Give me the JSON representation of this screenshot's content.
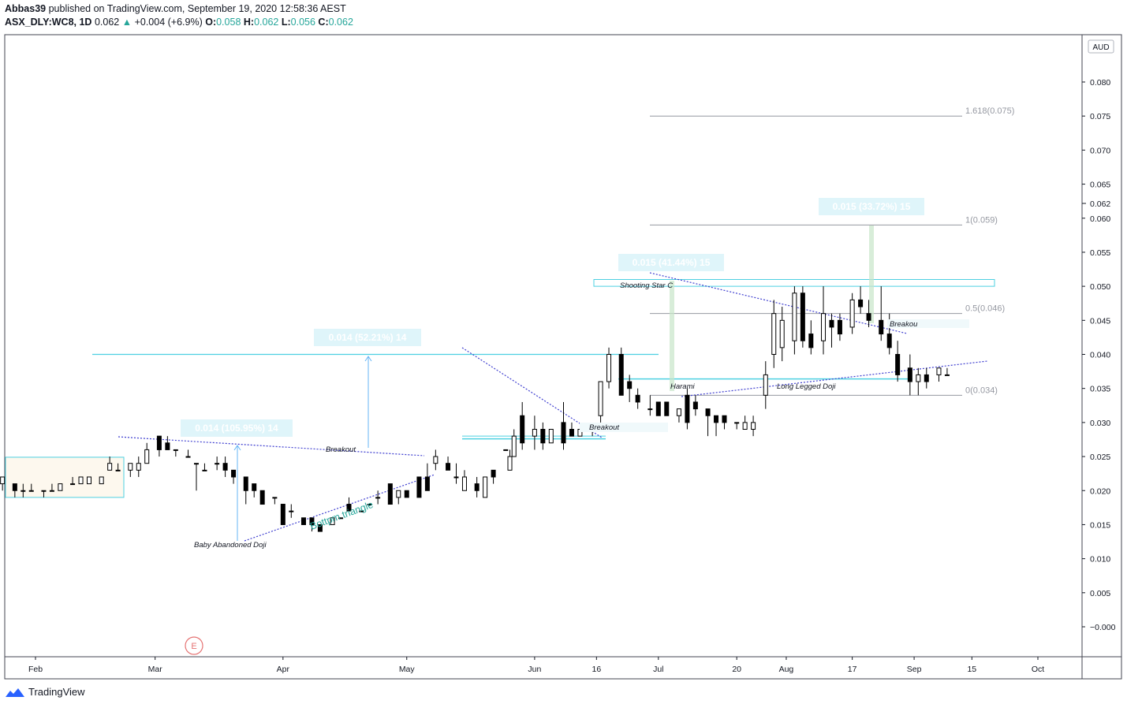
{
  "header": {
    "author": "Abbas39",
    "published_text": "published on TradingView.com, September 19, 2020 12:58:36 AEST",
    "symbol": "ASX_DLY:WC8, 1D",
    "last": "0.062",
    "change": "+0.004 (+6.9%)",
    "o_label": "O:",
    "o_val": "0.058",
    "h_label": "H:",
    "h_val": "0.062",
    "l_label": "L:",
    "l_val": "0.056",
    "c_label": "C:",
    "c_val": "0.062"
  },
  "currency": "AUD",
  "price_badge": "0.062",
  "earnings_marker": "E",
  "brand": "TradingView",
  "annotations": {
    "measure1": "0.014 (105.95%) 14",
    "measure2": "0.014 (52.21%) 14",
    "measure3": "0.015 (41.44%) 15",
    "measure4": "0.015 (33.72%) 15",
    "baby_doji": "Baby Abandoned Doji",
    "bottom_triangle": "Bottpm triangle",
    "breakout1": "Breakout",
    "breakout2": "Breakout",
    "breakout3": "Breakou",
    "shooting_star": "Shooting Star C",
    "harami": "Harami",
    "long_legged": "Long Legged Doji",
    "fib_1618": "1.618(0.075)",
    "fib_1": "1(0.059)",
    "fib_05": "0.5(0.046)",
    "fib_0": "0(0.034)"
  },
  "colors": {
    "up_fill": "#ffffff",
    "down_fill": "#000000",
    "wick": "#000000",
    "cyan": "#4dd0e1",
    "trend": "#3f3fd0",
    "header_green": "#26a69a",
    "label_bg": "#dff5fa"
  },
  "chart_data": {
    "type": "candlestick",
    "title": "ASX_DLY:WC8, 1D",
    "currency": "AUD",
    "ylim": [
      -0.004,
      0.087
    ],
    "y_ticks": [
      "0.080",
      "0.075",
      "0.070",
      "0.065",
      "0.060",
      "0.055",
      "0.050",
      "0.045",
      "0.040",
      "0.035",
      "0.030",
      "0.025",
      "0.020",
      "0.015",
      "0.010",
      "0.005",
      "−0.000"
    ],
    "x_tick_labels": [
      "Feb",
      "Mar",
      "Apr",
      "May",
      "Jun",
      "16",
      "Jul",
      "20",
      "Aug",
      "17",
      "Sep",
      "15",
      "Oct"
    ],
    "x_ticks": [
      "2020-02-01",
      "2020-03-01",
      "2020-04-01",
      "2020-05-01",
      "2020-06-01",
      "2020-06-16",
      "2020-07-01",
      "2020-07-20",
      "2020-08-01",
      "2020-08-17",
      "2020-09-01",
      "2020-09-15",
      "2020-10-01"
    ],
    "grid": false,
    "candles": [
      {
        "d": "2020-01-22",
        "o": 0.021,
        "h": 0.022,
        "l": 0.02,
        "c": 0.021
      },
      {
        "d": "2020-01-24",
        "o": 0.021,
        "h": 0.022,
        "l": 0.02,
        "c": 0.022
      },
      {
        "d": "2020-01-27",
        "o": 0.021,
        "h": 0.021,
        "l": 0.019,
        "c": 0.02
      },
      {
        "d": "2020-01-29",
        "o": 0.02,
        "h": 0.021,
        "l": 0.019,
        "c": 0.02
      },
      {
        "d": "2020-01-31",
        "o": 0.02,
        "h": 0.021,
        "l": 0.02,
        "c": 0.02
      },
      {
        "d": "2020-02-03",
        "o": 0.02,
        "h": 0.02,
        "l": 0.019,
        "c": 0.02
      },
      {
        "d": "2020-02-05",
        "o": 0.02,
        "h": 0.021,
        "l": 0.02,
        "c": 0.02
      },
      {
        "d": "2020-02-07",
        "o": 0.02,
        "h": 0.021,
        "l": 0.02,
        "c": 0.021
      },
      {
        "d": "2020-02-10",
        "o": 0.021,
        "h": 0.022,
        "l": 0.021,
        "c": 0.021
      },
      {
        "d": "2020-02-12",
        "o": 0.021,
        "h": 0.022,
        "l": 0.021,
        "c": 0.022
      },
      {
        "d": "2020-02-14",
        "o": 0.021,
        "h": 0.022,
        "l": 0.021,
        "c": 0.022
      },
      {
        "d": "2020-02-17",
        "o": 0.021,
        "h": 0.022,
        "l": 0.021,
        "c": 0.022
      },
      {
        "d": "2020-02-19",
        "o": 0.023,
        "h": 0.025,
        "l": 0.023,
        "c": 0.024
      },
      {
        "d": "2020-02-21",
        "o": 0.023,
        "h": 0.024,
        "l": 0.023,
        "c": 0.023
      },
      {
        "d": "2020-02-24",
        "o": 0.023,
        "h": 0.024,
        "l": 0.022,
        "c": 0.024
      },
      {
        "d": "2020-02-26",
        "o": 0.023,
        "h": 0.025,
        "l": 0.022,
        "c": 0.024
      },
      {
        "d": "2020-02-28",
        "o": 0.024,
        "h": 0.027,
        "l": 0.024,
        "c": 0.026
      },
      {
        "d": "2020-03-02",
        "o": 0.028,
        "h": 0.028,
        "l": 0.025,
        "c": 0.026
      },
      {
        "d": "2020-03-04",
        "o": 0.027,
        "h": 0.028,
        "l": 0.026,
        "c": 0.026
      },
      {
        "d": "2020-03-06",
        "o": 0.026,
        "h": 0.026,
        "l": 0.025,
        "c": 0.026
      },
      {
        "d": "2020-03-09",
        "o": 0.025,
        "h": 0.026,
        "l": 0.025,
        "c": 0.025
      },
      {
        "d": "2020-03-11",
        "o": 0.024,
        "h": 0.024,
        "l": 0.02,
        "c": 0.024
      },
      {
        "d": "2020-03-13",
        "o": 0.023,
        "h": 0.024,
        "l": 0.023,
        "c": 0.023
      },
      {
        "d": "2020-03-16",
        "o": 0.024,
        "h": 0.025,
        "l": 0.023,
        "c": 0.024
      },
      {
        "d": "2020-03-18",
        "o": 0.024,
        "h": 0.025,
        "l": 0.022,
        "c": 0.023
      },
      {
        "d": "2020-03-20",
        "o": 0.023,
        "h": 0.023,
        "l": 0.021,
        "c": 0.022
      },
      {
        "d": "2020-03-23",
        "o": 0.022,
        "h": 0.022,
        "l": 0.018,
        "c": 0.02
      },
      {
        "d": "2020-03-25",
        "o": 0.021,
        "h": 0.021,
        "l": 0.019,
        "c": 0.02
      },
      {
        "d": "2020-03-27",
        "o": 0.02,
        "h": 0.02,
        "l": 0.018,
        "c": 0.018
      },
      {
        "d": "2020-03-30",
        "o": 0.019,
        "h": 0.019,
        "l": 0.018,
        "c": 0.019
      },
      {
        "d": "2020-04-01",
        "o": 0.018,
        "h": 0.018,
        "l": 0.015,
        "c": 0.015
      },
      {
        "d": "2020-04-03",
        "o": 0.017,
        "h": 0.018,
        "l": 0.016,
        "c": 0.017
      },
      {
        "d": "2020-04-06",
        "o": 0.016,
        "h": 0.016,
        "l": 0.015,
        "c": 0.015
      },
      {
        "d": "2020-04-08",
        "o": 0.016,
        "h": 0.016,
        "l": 0.014,
        "c": 0.015
      },
      {
        "d": "2020-04-10",
        "o": 0.015,
        "h": 0.015,
        "l": 0.014,
        "c": 0.014
      },
      {
        "d": "2020-04-13",
        "o": 0.015,
        "h": 0.016,
        "l": 0.015,
        "c": 0.016
      },
      {
        "d": "2020-04-15",
        "o": 0.016,
        "h": 0.016,
        "l": 0.016,
        "c": 0.016
      },
      {
        "d": "2020-04-17",
        "o": 0.018,
        "h": 0.019,
        "l": 0.017,
        "c": 0.017
      },
      {
        "d": "2020-04-20",
        "o": 0.017,
        "h": 0.017,
        "l": 0.017,
        "c": 0.017
      },
      {
        "d": "2020-04-22",
        "o": 0.018,
        "h": 0.018,
        "l": 0.018,
        "c": 0.018
      },
      {
        "d": "2020-04-24",
        "o": 0.019,
        "h": 0.02,
        "l": 0.018,
        "c": 0.019
      },
      {
        "d": "2020-04-27",
        "o": 0.021,
        "h": 0.021,
        "l": 0.018,
        "c": 0.018
      },
      {
        "d": "2020-04-29",
        "o": 0.019,
        "h": 0.02,
        "l": 0.018,
        "c": 0.02
      },
      {
        "d": "2020-05-01",
        "o": 0.02,
        "h": 0.02,
        "l": 0.019,
        "c": 0.019
      },
      {
        "d": "2020-05-04",
        "o": 0.022,
        "h": 0.022,
        "l": 0.019,
        "c": 0.019
      },
      {
        "d": "2020-05-06",
        "o": 0.022,
        "h": 0.024,
        "l": 0.02,
        "c": 0.02
      },
      {
        "d": "2020-05-08",
        "o": 0.024,
        "h": 0.026,
        "l": 0.023,
        "c": 0.025
      },
      {
        "d": "2020-05-11",
        "o": 0.024,
        "h": 0.025,
        "l": 0.023,
        "c": 0.023
      },
      {
        "d": "2020-05-13",
        "o": 0.022,
        "h": 0.024,
        "l": 0.021,
        "c": 0.022
      },
      {
        "d": "2020-05-15",
        "o": 0.02,
        "h": 0.023,
        "l": 0.02,
        "c": 0.022
      },
      {
        "d": "2020-05-18",
        "o": 0.021,
        "h": 0.022,
        "l": 0.019,
        "c": 0.02
      },
      {
        "d": "2020-05-20",
        "o": 0.019,
        "h": 0.022,
        "l": 0.019,
        "c": 0.022
      },
      {
        "d": "2020-05-22",
        "o": 0.023,
        "h": 0.023,
        "l": 0.021,
        "c": 0.022
      },
      {
        "d": "2020-05-25",
        "o": 0.026,
        "h": 0.026,
        "l": 0.026,
        "c": 0.026
      },
      {
        "d": "2020-05-26",
        "o": 0.023,
        "h": 0.026,
        "l": 0.023,
        "c": 0.025
      },
      {
        "d": "2020-05-27",
        "o": 0.025,
        "h": 0.029,
        "l": 0.025,
        "c": 0.028
      },
      {
        "d": "2020-05-29",
        "o": 0.031,
        "h": 0.033,
        "l": 0.026,
        "c": 0.027
      },
      {
        "d": "2020-06-01",
        "o": 0.028,
        "h": 0.031,
        "l": 0.026,
        "c": 0.029
      },
      {
        "d": "2020-06-03",
        "o": 0.029,
        "h": 0.03,
        "l": 0.026,
        "c": 0.027
      },
      {
        "d": "2020-06-05",
        "o": 0.027,
        "h": 0.029,
        "l": 0.027,
        "c": 0.029
      },
      {
        "d": "2020-06-08",
        "o": 0.03,
        "h": 0.033,
        "l": 0.026,
        "c": 0.027
      },
      {
        "d": "2020-06-10",
        "o": 0.029,
        "h": 0.03,
        "l": 0.028,
        "c": 0.028
      },
      {
        "d": "2020-06-12",
        "o": 0.028,
        "h": 0.029,
        "l": 0.028,
        "c": 0.029
      },
      {
        "d": "2020-06-15",
        "o": 0.029,
        "h": 0.029,
        "l": 0.028,
        "c": 0.029
      },
      {
        "d": "2020-06-17",
        "o": 0.031,
        "h": 0.036,
        "l": 0.03,
        "c": 0.036
      },
      {
        "d": "2020-06-19",
        "o": 0.036,
        "h": 0.041,
        "l": 0.035,
        "c": 0.04
      },
      {
        "d": "2020-06-22",
        "o": 0.04,
        "h": 0.041,
        "l": 0.034,
        "c": 0.034
      },
      {
        "d": "2020-06-24",
        "o": 0.036,
        "h": 0.037,
        "l": 0.033,
        "c": 0.035
      },
      {
        "d": "2020-06-26",
        "o": 0.034,
        "h": 0.035,
        "l": 0.032,
        "c": 0.033
      },
      {
        "d": "2020-06-29",
        "o": 0.032,
        "h": 0.034,
        "l": 0.031,
        "c": 0.032
      },
      {
        "d": "2020-07-01",
        "o": 0.033,
        "h": 0.033,
        "l": 0.031,
        "c": 0.031
      },
      {
        "d": "2020-07-03",
        "o": 0.033,
        "h": 0.033,
        "l": 0.031,
        "c": 0.031
      },
      {
        "d": "2020-07-06",
        "o": 0.031,
        "h": 0.032,
        "l": 0.03,
        "c": 0.032
      },
      {
        "d": "2020-07-08",
        "o": 0.034,
        "h": 0.035,
        "l": 0.029,
        "c": 0.03
      },
      {
        "d": "2020-07-10",
        "o": 0.033,
        "h": 0.034,
        "l": 0.031,
        "c": 0.032
      },
      {
        "d": "2020-07-13",
        "o": 0.032,
        "h": 0.032,
        "l": 0.028,
        "c": 0.031
      },
      {
        "d": "2020-07-15",
        "o": 0.031,
        "h": 0.031,
        "l": 0.028,
        "c": 0.03
      },
      {
        "d": "2020-07-17",
        "o": 0.031,
        "h": 0.031,
        "l": 0.029,
        "c": 0.03
      },
      {
        "d": "2020-07-20",
        "o": 0.03,
        "h": 0.03,
        "l": 0.029,
        "c": 0.03
      },
      {
        "d": "2020-07-22",
        "o": 0.029,
        "h": 0.031,
        "l": 0.029,
        "c": 0.03
      },
      {
        "d": "2020-07-24",
        "o": 0.029,
        "h": 0.031,
        "l": 0.028,
        "c": 0.03
      },
      {
        "d": "2020-07-27",
        "o": 0.034,
        "h": 0.039,
        "l": 0.032,
        "c": 0.037
      },
      {
        "d": "2020-07-29",
        "o": 0.04,
        "h": 0.048,
        "l": 0.038,
        "c": 0.046
      },
      {
        "d": "2020-07-31",
        "o": 0.041,
        "h": 0.047,
        "l": 0.039,
        "c": 0.045
      },
      {
        "d": "2020-08-03",
        "o": 0.042,
        "h": 0.05,
        "l": 0.04,
        "c": 0.049
      },
      {
        "d": "2020-08-05",
        "o": 0.049,
        "h": 0.05,
        "l": 0.041,
        "c": 0.042
      },
      {
        "d": "2020-08-07",
        "o": 0.043,
        "h": 0.045,
        "l": 0.04,
        "c": 0.041
      },
      {
        "d": "2020-08-10",
        "o": 0.042,
        "h": 0.05,
        "l": 0.04,
        "c": 0.046
      },
      {
        "d": "2020-08-12",
        "o": 0.045,
        "h": 0.046,
        "l": 0.041,
        "c": 0.044
      },
      {
        "d": "2020-08-14",
        "o": 0.045,
        "h": 0.046,
        "l": 0.042,
        "c": 0.043
      },
      {
        "d": "2020-08-17",
        "o": 0.044,
        "h": 0.049,
        "l": 0.043,
        "c": 0.048
      },
      {
        "d": "2020-08-19",
        "o": 0.048,
        "h": 0.05,
        "l": 0.046,
        "c": 0.047
      },
      {
        "d": "2020-08-21",
        "o": 0.046,
        "h": 0.048,
        "l": 0.044,
        "c": 0.045
      },
      {
        "d": "2020-08-24",
        "o": 0.045,
        "h": 0.05,
        "l": 0.042,
        "c": 0.043
      },
      {
        "d": "2020-08-26",
        "o": 0.043,
        "h": 0.046,
        "l": 0.04,
        "c": 0.041
      },
      {
        "d": "2020-08-28",
        "o": 0.04,
        "h": 0.042,
        "l": 0.036,
        "c": 0.037
      },
      {
        "d": "2020-08-31",
        "o": 0.038,
        "h": 0.04,
        "l": 0.034,
        "c": 0.036
      },
      {
        "d": "2020-09-02",
        "o": 0.036,
        "h": 0.038,
        "l": 0.034,
        "c": 0.037
      },
      {
        "d": "2020-09-04",
        "o": 0.037,
        "h": 0.038,
        "l": 0.035,
        "c": 0.036
      },
      {
        "d": "2020-09-07",
        "o": 0.037,
        "h": 0.038,
        "l": 0.036,
        "c": 0.038
      },
      {
        "d": "2020-09-09",
        "o": 0.037,
        "h": 0.038,
        "l": 0.037,
        "c": 0.037
      }
    ],
    "annotations": [
      "0.014 (105.95%) 14",
      "0.014 (52.21%) 14",
      "0.015 (41.44%) 15",
      "0.015 (33.72%) 15",
      "Baby Abandoned Doji",
      "Bottpm triangle",
      "Breakout",
      "Shooting Star C",
      "Harami",
      "Long Legged Doji",
      "Breakou"
    ],
    "fibonacci": [
      {
        "label": "1.618(0.075)",
        "value": 0.075
      },
      {
        "label": "1(0.059)",
        "value": 0.059
      },
      {
        "label": "0.5(0.046)",
        "value": 0.046
      },
      {
        "label": "0(0.034)",
        "value": 0.034
      }
    ]
  }
}
